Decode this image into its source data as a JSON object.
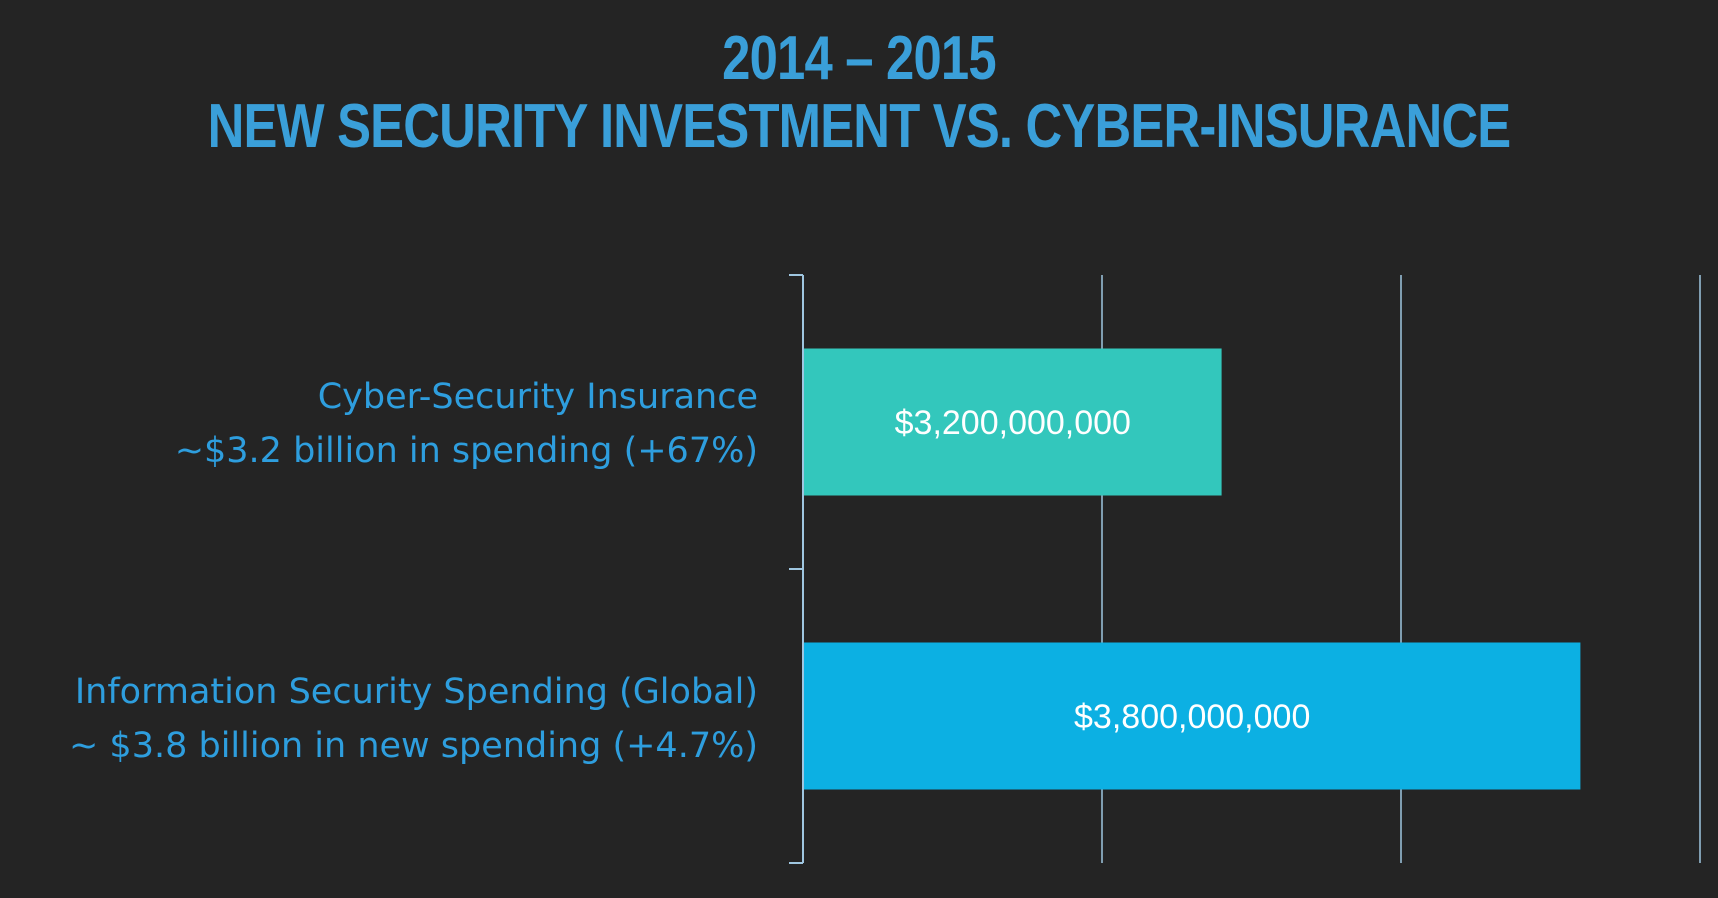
{
  "chart_data": {
    "type": "bar",
    "orientation": "horizontal",
    "title_lines": [
      "2014 – 2015",
      "NEW SECURITY INVESTMENT VS. CYBER-INSURANCE"
    ],
    "categories": [
      {
        "line1": "Cyber-Security Insurance",
        "line2": "~$3.2 billion in spending (+67%)"
      },
      {
        "line1": "Information Security Spending (Global)",
        "line2": "~ $3.8 billion in new spending (+4.7%)"
      }
    ],
    "values": [
      3200000000,
      3800000000
    ],
    "data_labels": [
      "$3,200,000,000",
      "$3,800,000,000"
    ],
    "xlim": [
      2500000000,
      4000000000
    ],
    "gridlines_at": [
      3000000000,
      3500000000,
      4000000000
    ],
    "grid": true,
    "legend": "none",
    "bar_colors": [
      "#33c7bc",
      "#0cb0e3"
    ],
    "title_color": "#3a9fd9",
    "label_color": "#2e9ede",
    "grid_color": "#9fc6e0",
    "background": "#242424"
  }
}
